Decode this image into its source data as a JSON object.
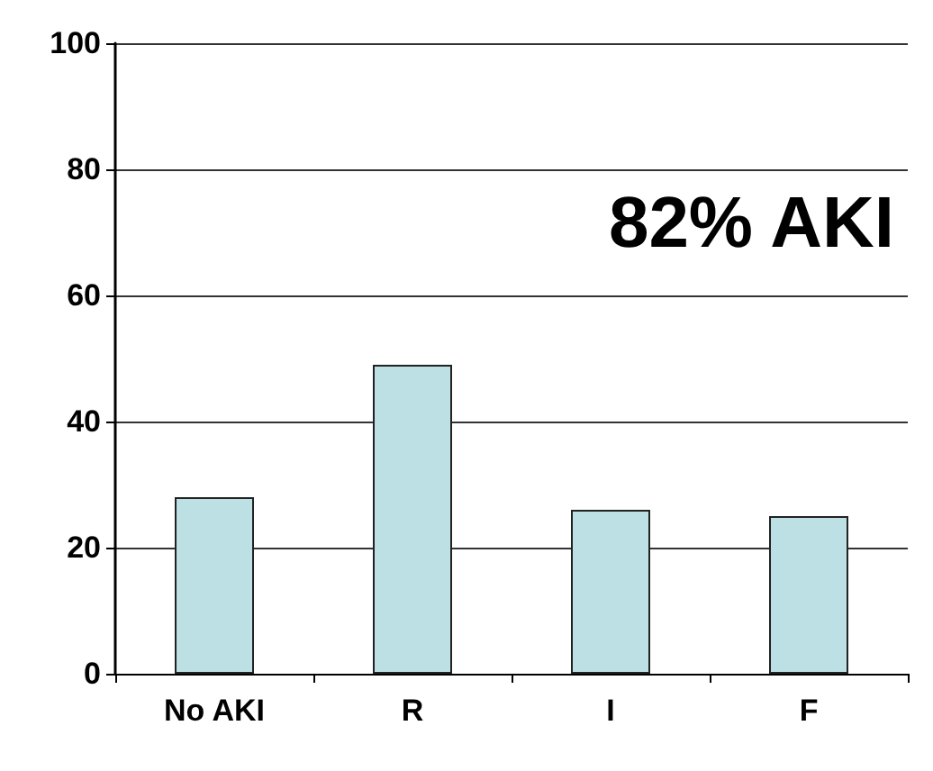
{
  "chart_data": {
    "type": "bar",
    "categories": [
      "No AKI",
      "R",
      "I",
      "F"
    ],
    "values": [
      28,
      49,
      26,
      25
    ],
    "color": "#bce0e3",
    "ylim": [
      0,
      100
    ],
    "yticks": [
      0,
      20,
      40,
      60,
      80,
      100
    ],
    "grid": "y",
    "annotations": [
      "82% AKI"
    ]
  }
}
